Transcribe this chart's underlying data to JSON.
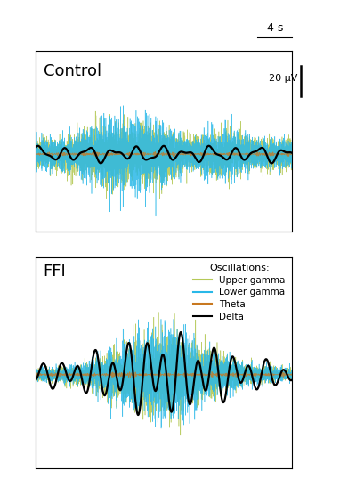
{
  "title_control": "Control",
  "title_ffi": "FFI",
  "scale_bar_time": "4 s",
  "scale_bar_voltage": "20 μV",
  "upper_gamma_color": "#b5c957",
  "lower_gamma_color": "#29b8e8",
  "theta_color": "#c87820",
  "delta_color": "#000000",
  "legend_title": "Oscillations:",
  "legend_labels": [
    "Upper gamma",
    "Lower gamma",
    "Theta",
    "Delta"
  ],
  "background_color": "#ffffff",
  "n_points": 3000,
  "duration": 30
}
